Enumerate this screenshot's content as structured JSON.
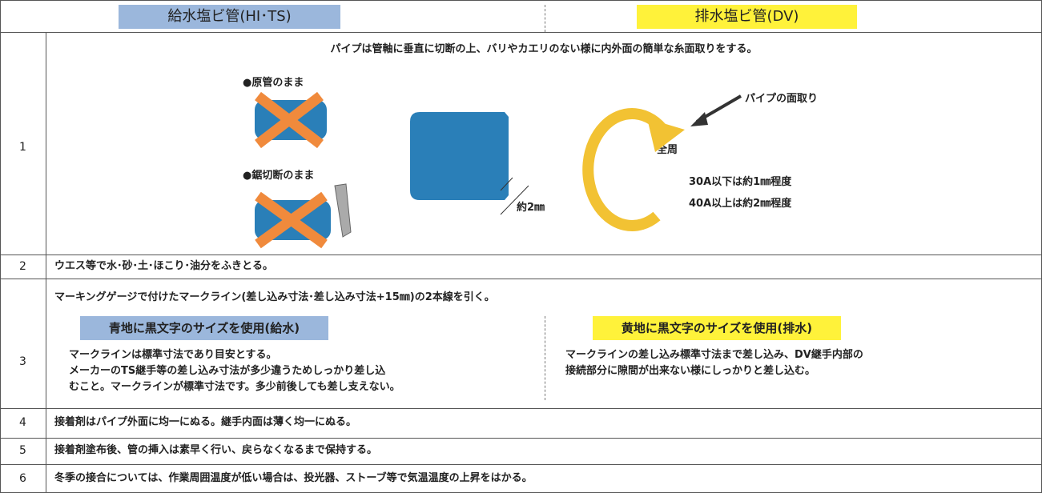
{
  "header": {
    "supply": "給水塩ビ管(HI･TS)",
    "drain": "排水塩ビ管(DV)"
  },
  "rows": [
    {
      "number": "1",
      "text": "パイプは管軸に垂直に切断の上、バリやカエリのない様に内外面の簡単な糸面取りをする。",
      "labels": [
        "●原管のまま",
        "●鋸切断のまま",
        "約2㎜",
        "パイプの面取り",
        "全周",
        "30A以下は約1㎜程度",
        "40A以上は約2㎜程度"
      ]
    },
    {
      "number": "2",
      "text": "ウエス等で水･砂･土･ほこり･油分をふきとる。"
    },
    {
      "number": "3",
      "text": "マーキングゲージで付けたマークライン(差し込み寸法･差し込み寸法+15㎜)の2本線を引く。",
      "supply": {
        "title": "青地に黒文字のサイズを使用(給水)",
        "lines": [
          "マークラインは標準寸法であり目安とする。",
          "メーカーのTS継手等の差し込み寸法が多少違うためしっかり差し込",
          "むこと。マークラインが標準寸法です。多少前後しても差し支えない。"
        ]
      },
      "drain": {
        "title": "黄地に黒文字のサイズを使用(排水)",
        "lines": [
          "マークラインの差し込み標準寸法まで差し込み、DV継手内部の",
          "接続部分に隙間が出来ない様にしっかりと差し込む。"
        ]
      }
    },
    {
      "number": "4",
      "text": "接着剤はパイプ外面に均一にぬる。継手内面は薄く均一にぬる。"
    },
    {
      "number": "5",
      "text": "接着剤塗布後、管の挿入は素早く行い、戻らなくなるまで保持する。"
    },
    {
      "number": "6",
      "text": "冬季の接合については、作業周囲温度が低い場合は、投光器、ストーブ等で気温温度の上昇をはかる。"
    }
  ]
}
